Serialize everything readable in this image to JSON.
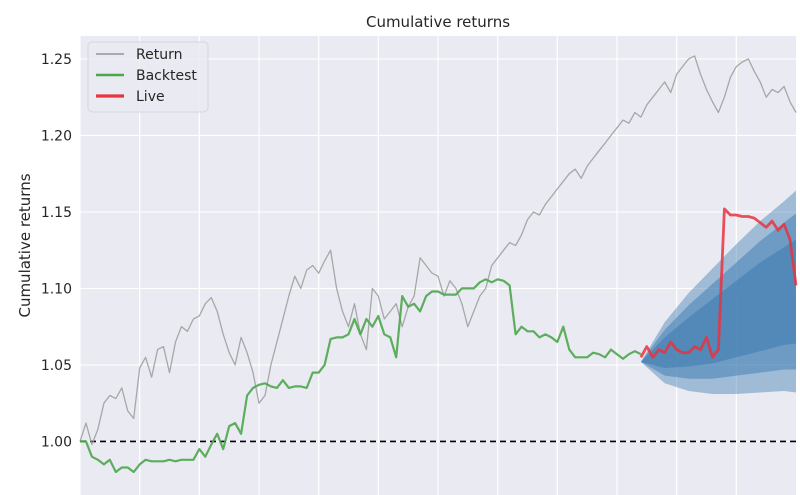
{
  "chart_data": {
    "type": "line",
    "title": "Cumulative returns",
    "ylabel": "Cumulative returns",
    "xlabel": "",
    "ylim": [
      0.965,
      1.265
    ],
    "xlim": [
      0,
      120
    ],
    "yticks": [
      1.0,
      1.05,
      1.1,
      1.15,
      1.2,
      1.25
    ],
    "ytick_labels": [
      "1.00",
      "1.05",
      "1.10",
      "1.15",
      "1.20",
      "1.25"
    ],
    "xgrid": [
      0,
      10,
      20,
      30,
      40,
      50,
      60,
      70,
      80,
      90,
      100,
      110
    ],
    "grid": true,
    "legend_position": "top-left",
    "baseline": 1.0,
    "colors": {
      "background": "#EAEAF2",
      "grid": "#ffffff",
      "return": "#A0A0A0",
      "backtest": "#4CA64C",
      "live": "#E8343F",
      "cone": "#4682B4"
    },
    "legend": [
      {
        "name": "Return",
        "key": "return"
      },
      {
        "name": "Backtest",
        "key": "backtest"
      },
      {
        "name": "Live",
        "key": "live"
      }
    ],
    "series": [
      {
        "name": "Return",
        "key": "return",
        "x": [
          0,
          1,
          2,
          3,
          4,
          5,
          6,
          7,
          8,
          9,
          10,
          11,
          12,
          13,
          14,
          15,
          16,
          17,
          18,
          19,
          20,
          21,
          22,
          23,
          24,
          25,
          26,
          27,
          28,
          29,
          30,
          31,
          32,
          33,
          34,
          35,
          36,
          37,
          38,
          39,
          40,
          41,
          42,
          43,
          44,
          45,
          46,
          47,
          48,
          49,
          50,
          51,
          52,
          53,
          54,
          55,
          56,
          57,
          58,
          59,
          60,
          61,
          62,
          63,
          64,
          65,
          66,
          67,
          68,
          69,
          70,
          71,
          72,
          73,
          74,
          75,
          76,
          77,
          78,
          79,
          80,
          81,
          82,
          83,
          84,
          85,
          86,
          87,
          88,
          89,
          90,
          91,
          92,
          93,
          94,
          95,
          96,
          97,
          98,
          99,
          100,
          101,
          102,
          103,
          104,
          105,
          106,
          107,
          108,
          109,
          110,
          111,
          112,
          113,
          114,
          115,
          116,
          117,
          118,
          119,
          120
        ],
        "values": [
          1.0,
          1.012,
          0.998,
          1.008,
          1.025,
          1.03,
          1.028,
          1.035,
          1.02,
          1.015,
          1.048,
          1.055,
          1.042,
          1.06,
          1.062,
          1.045,
          1.065,
          1.075,
          1.072,
          1.08,
          1.082,
          1.09,
          1.094,
          1.085,
          1.07,
          1.058,
          1.05,
          1.068,
          1.058,
          1.045,
          1.025,
          1.03,
          1.05,
          1.065,
          1.08,
          1.095,
          1.108,
          1.1,
          1.112,
          1.115,
          1.11,
          1.118,
          1.125,
          1.1,
          1.085,
          1.075,
          1.09,
          1.07,
          1.06,
          1.1,
          1.095,
          1.08,
          1.085,
          1.09,
          1.075,
          1.088,
          1.095,
          1.12,
          1.115,
          1.11,
          1.108,
          1.095,
          1.105,
          1.1,
          1.09,
          1.075,
          1.085,
          1.095,
          1.1,
          1.115,
          1.12,
          1.125,
          1.13,
          1.128,
          1.135,
          1.145,
          1.15,
          1.148,
          1.155,
          1.16,
          1.165,
          1.17,
          1.175,
          1.178,
          1.172,
          1.18,
          1.185,
          1.19,
          1.195,
          1.2,
          1.205,
          1.21,
          1.208,
          1.215,
          1.212,
          1.22,
          1.225,
          1.23,
          1.235,
          1.228,
          1.24,
          1.245,
          1.25,
          1.252,
          1.24,
          1.23,
          1.222,
          1.215,
          1.225,
          1.238,
          1.245,
          1.248,
          1.25,
          1.242,
          1.235,
          1.225,
          1.23,
          1.228,
          1.232,
          1.222,
          1.215
        ]
      },
      {
        "name": "Backtest",
        "key": "backtest",
        "x": [
          0,
          1,
          2,
          3,
          4,
          5,
          6,
          7,
          8,
          9,
          10,
          11,
          12,
          13,
          14,
          15,
          16,
          17,
          18,
          19,
          20,
          21,
          22,
          23,
          24,
          25,
          26,
          27,
          28,
          29,
          30,
          31,
          32,
          33,
          34,
          35,
          36,
          37,
          38,
          39,
          40,
          41,
          42,
          43,
          44,
          45,
          46,
          47,
          48,
          49,
          50,
          51,
          52,
          53,
          54,
          55,
          56,
          57,
          58,
          59,
          60,
          61,
          62,
          63,
          64,
          65,
          66,
          67,
          68,
          69,
          70,
          71,
          72,
          73,
          74,
          75,
          76,
          77,
          78,
          79,
          80,
          81,
          82,
          83,
          84,
          85,
          86,
          87,
          88,
          89,
          90,
          91,
          92,
          93,
          94
        ],
        "values": [
          1.0,
          1.0,
          0.99,
          0.988,
          0.985,
          0.988,
          0.98,
          0.983,
          0.983,
          0.98,
          0.985,
          0.988,
          0.987,
          0.987,
          0.987,
          0.988,
          0.987,
          0.988,
          0.988,
          0.988,
          0.995,
          0.99,
          0.998,
          1.005,
          0.995,
          1.01,
          1.012,
          1.005,
          1.03,
          1.035,
          1.037,
          1.038,
          1.036,
          1.035,
          1.04,
          1.035,
          1.036,
          1.036,
          1.035,
          1.045,
          1.045,
          1.05,
          1.067,
          1.068,
          1.068,
          1.07,
          1.08,
          1.07,
          1.08,
          1.075,
          1.082,
          1.07,
          1.068,
          1.055,
          1.095,
          1.088,
          1.09,
          1.085,
          1.095,
          1.098,
          1.098,
          1.096,
          1.096,
          1.096,
          1.1,
          1.1,
          1.1,
          1.104,
          1.106,
          1.104,
          1.106,
          1.105,
          1.102,
          1.07,
          1.075,
          1.072,
          1.072,
          1.068,
          1.07,
          1.068,
          1.065,
          1.075,
          1.06,
          1.055,
          1.055,
          1.055,
          1.058,
          1.057,
          1.055,
          1.06,
          1.057,
          1.054,
          1.057,
          1.059,
          1.057
        ]
      },
      {
        "name": "Live",
        "key": "live",
        "x": [
          94,
          95,
          96,
          97,
          98,
          99,
          100,
          101,
          102,
          103,
          104,
          105,
          106,
          107,
          108,
          109,
          110,
          111,
          112,
          113,
          114,
          115,
          116,
          117,
          118,
          119,
          120
        ],
        "values": [
          1.055,
          1.062,
          1.055,
          1.06,
          1.058,
          1.065,
          1.06,
          1.058,
          1.058,
          1.062,
          1.06,
          1.068,
          1.055,
          1.06,
          1.152,
          1.148,
          1.148,
          1.147,
          1.147,
          1.146,
          1.143,
          1.14,
          1.144,
          1.138,
          1.142,
          1.132,
          1.102
        ]
      }
    ],
    "cone": {
      "x": [
        94,
        98,
        102,
        106,
        110,
        114,
        118,
        120
      ],
      "center": [
        1.052,
        1.058,
        1.065,
        1.072,
        1.08,
        1.088,
        1.095,
        1.098
      ],
      "bands": [
        {
          "sigma": 1.0,
          "spread": [
            0.0,
            0.01,
            0.016,
            0.021,
            0.025,
            0.029,
            0.032,
            0.034
          ]
        },
        {
          "sigma": 1.5,
          "spread": [
            0.0,
            0.015,
            0.024,
            0.031,
            0.037,
            0.043,
            0.048,
            0.051
          ]
        },
        {
          "sigma": 2.0,
          "spread": [
            0.0,
            0.02,
            0.032,
            0.041,
            0.049,
            0.056,
            0.062,
            0.066
          ]
        }
      ]
    }
  }
}
